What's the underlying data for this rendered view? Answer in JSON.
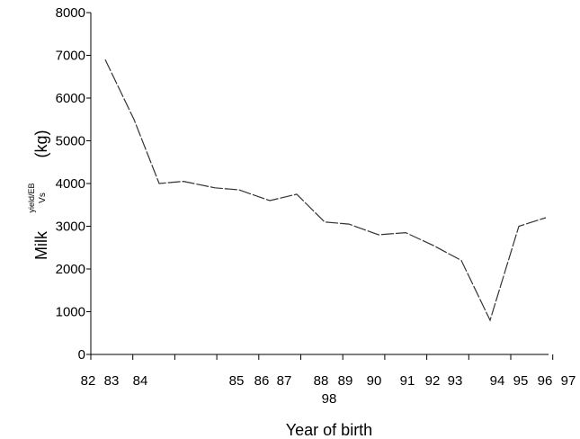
{
  "chart_data": {
    "type": "line",
    "xlabel": "Year of birth",
    "ylabel_prefix": "Milk",
    "ylabel_sub_top": "yield/EB",
    "ylabel_sub_bottom": "Vs",
    "ylabel_unit": "(kg)",
    "ylim": [
      0,
      8000
    ],
    "yticks": [
      0,
      1000,
      2000,
      3000,
      4000,
      5000,
      6000,
      7000,
      8000
    ],
    "x_tick_labels": [
      "82",
      "83",
      "84",
      "85",
      "86",
      "87",
      "88",
      "89",
      "90",
      "91",
      "92",
      "93",
      "94",
      "95",
      "96",
      "97"
    ],
    "x_tick_label_extra": "98",
    "grid": false,
    "series": [
      {
        "values": [
          6900,
          5500,
          4000,
          4050,
          3900,
          3850,
          3600,
          3750,
          3100,
          3050,
          2800,
          2850,
          2550,
          2200,
          800,
          3000,
          3200
        ]
      }
    ]
  }
}
